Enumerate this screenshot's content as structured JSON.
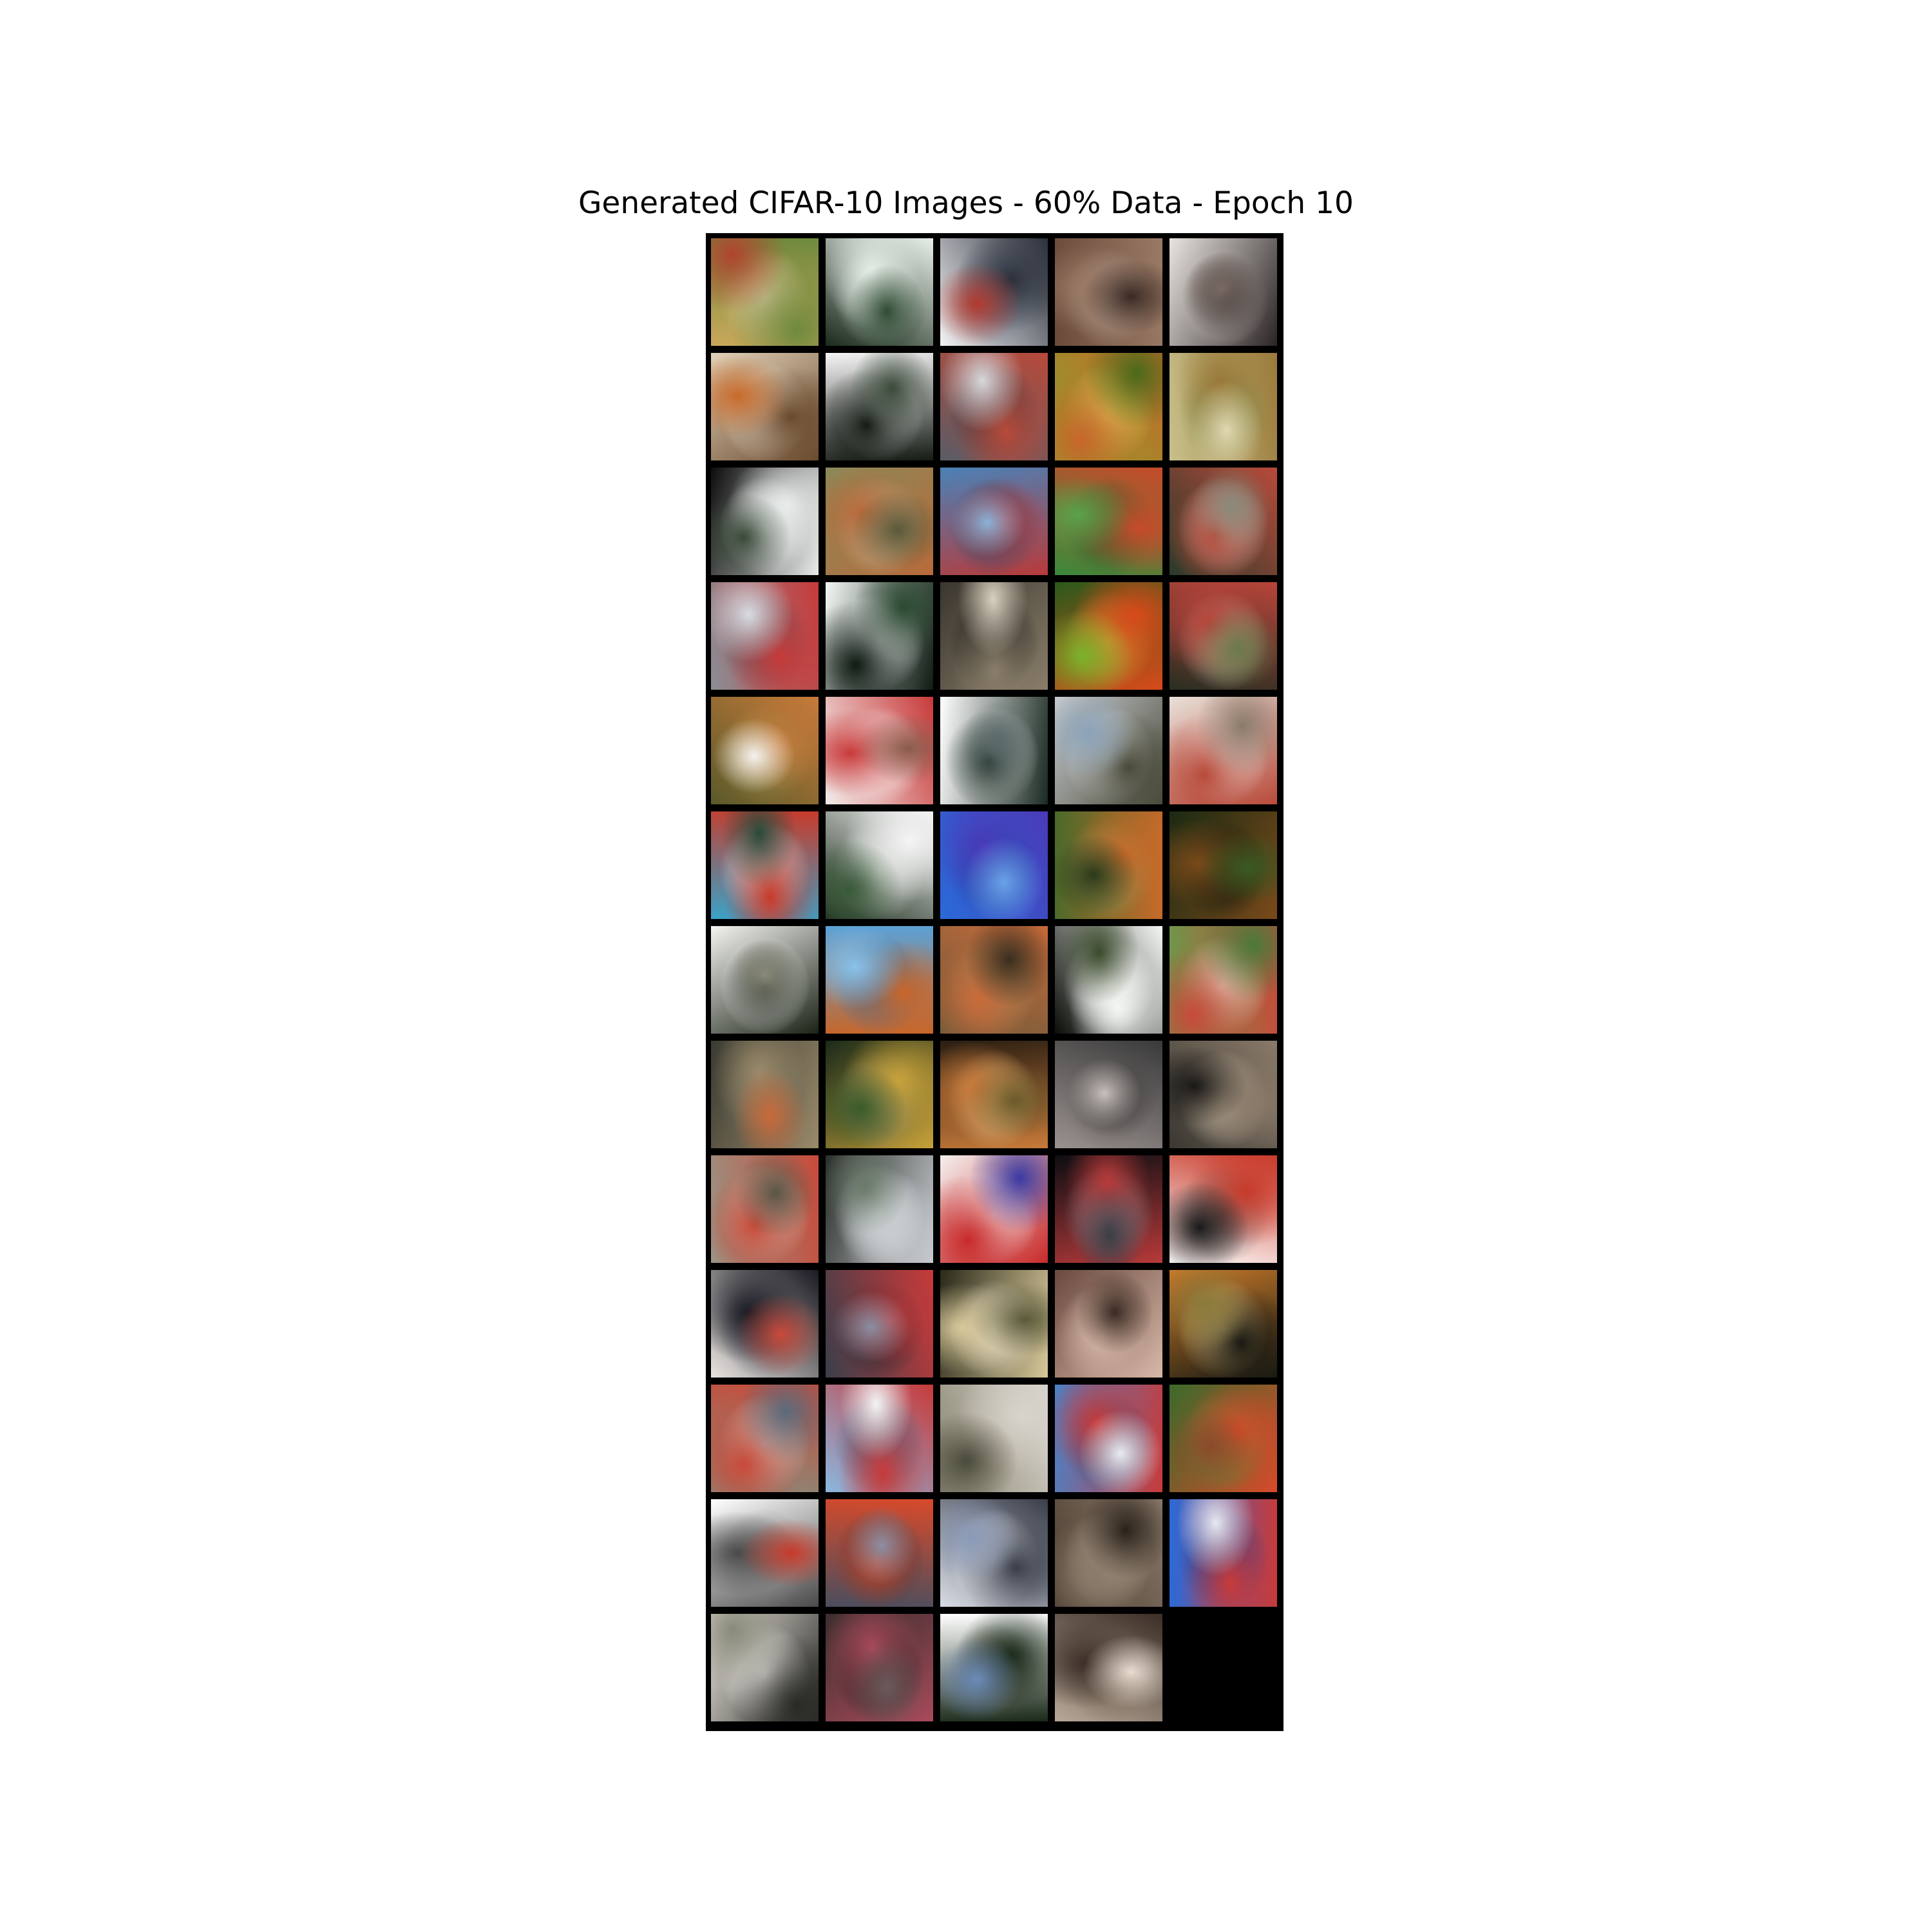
{
  "title": "Generated CIFAR-10 Images - 60% Data - Epoch 10",
  "grid": {
    "columns": 5,
    "rows": 13,
    "filled_tiles": 64,
    "tiles": [
      {
        "colors": [
          "#c9a85a",
          "#6f8a3e",
          "#b0452e",
          "#d8c9a0"
        ]
      },
      {
        "colors": [
          "#1a2a1c",
          "#e8efe9",
          "#2f4a33",
          "#b9c9bd"
        ]
      },
      {
        "colors": [
          "#f2f2f4",
          "#2a2f3a",
          "#b23a2e",
          "#6c7a92"
        ]
      },
      {
        "colors": [
          "#6b4a3a",
          "#9a7a66",
          "#3a2a24",
          "#b8a294"
        ]
      },
      {
        "colors": [
          "#e9e4e0",
          "#2a2424",
          "#7a6a64",
          "#c8bcb6"
        ]
      },
      {
        "colors": [
          "#e2d2b8",
          "#6a4a2e",
          "#c86a2a",
          "#f0e6d6"
        ]
      },
      {
        "colors": [
          "#f6f6f6",
          "#141a14",
          "#3a4a3a",
          "#dcdcdc"
        ]
      },
      {
        "colors": [
          "#5a5c66",
          "#b84a3a",
          "#d8d8dc",
          "#2e3038"
        ]
      },
      {
        "colors": [
          "#8aa02a",
          "#c8662a",
          "#4a6a1a",
          "#e0c85a"
        ]
      },
      {
        "colors": [
          "#c8c08a",
          "#9a7a3a",
          "#e0d8b0",
          "#7a8a4a"
        ]
      },
      {
        "colors": [
          "#0c0c0c",
          "#e8ecea",
          "#3a4a3a",
          "#ffffff"
        ]
      },
      {
        "colors": [
          "#8a8a5a",
          "#b86a3a",
          "#5a5a3a",
          "#c8b89a"
        ]
      },
      {
        "colors": [
          "#4a82b8",
          "#b83a3a",
          "#8ab2d8",
          "#2a4a6a"
        ]
      },
      {
        "colors": [
          "#3a8a3a",
          "#c84a2a",
          "#5aa24a",
          "#2a5a2a"
        ]
      },
      {
        "colors": [
          "#2a3a2a",
          "#b84a3a",
          "#8a8a7a",
          "#d8d0c8"
        ]
      },
      {
        "colors": [
          "#8a8e96",
          "#c83a3a",
          "#d8dce2",
          "#4a4e56"
        ]
      },
      {
        "colors": [
          "#f4f8f4",
          "#0e1a12",
          "#2a4a32",
          "#ffffff"
        ]
      },
      {
        "colors": [
          "#3a362e",
          "#8a7e6a",
          "#d8d0c0",
          "#1e1c18"
        ]
      },
      {
        "colors": [
          "#2a5a1a",
          "#d84a1a",
          "#7ab22a",
          "#e8a23a"
        ]
      },
      {
        "colors": [
          "#2a2e22",
          "#b8443a",
          "#6a7a4a",
          "#c8bca8"
        ]
      },
      {
        "colors": [
          "#5a5a2a",
          "#c87a3a",
          "#f4f2ee",
          "#8a8a4a"
        ]
      },
      {
        "colors": [
          "#f2ecea",
          "#c83a3a",
          "#8a5a4a",
          "#ffffff"
        ]
      },
      {
        "colors": [
          "#ffffff",
          "#1a2a22",
          "#5a6a6a",
          "#e8ecec"
        ]
      },
      {
        "colors": [
          "#c8ccd0",
          "#4a4a3a",
          "#8aa2b8",
          "#eaeaea"
        ]
      },
      {
        "colors": [
          "#e8e0d8",
          "#b84a3a",
          "#8a7a6a",
          "#f4f0ec"
        ]
      },
      {
        "colors": [
          "#3aa2c8",
          "#c83a2a",
          "#2a4a3a",
          "#e8e8e8"
        ]
      },
      {
        "colors": [
          "#1a2a1a",
          "#f4f4f4",
          "#3a5a3a",
          "#d8dcd8"
        ]
      },
      {
        "colors": [
          "#2a6ad8",
          "#4a3ab8",
          "#6aa2e8",
          "#1a4aa2"
        ]
      },
      {
        "colors": [
          "#4a6a2a",
          "#c86a2a",
          "#2a3a1a",
          "#8a9a5a"
        ]
      },
      {
        "colors": [
          "#1a2a12",
          "#7a4a1a",
          "#3a5a22",
          "#0e140a"
        ]
      },
      {
        "colors": [
          "#f4f4f0",
          "#1a2216",
          "#8a8a7a",
          "#ffffff"
        ]
      },
      {
        "colors": [
          "#5aa2d8",
          "#c8662a",
          "#8ac2e8",
          "#2a6aa2"
        ]
      },
      {
        "colors": [
          "#6a5a3a",
          "#c86a3a",
          "#3a2e1e",
          "#a88a5a"
        ]
      },
      {
        "colors": [
          "#0a0e08",
          "#f4f6f4",
          "#3a4a2a",
          "#ffffff"
        ]
      },
      {
        "colors": [
          "#6a9a4a",
          "#c84a3a",
          "#4a7a3a",
          "#e8d8c8"
        ]
      },
      {
        "colors": [
          "#3a3a32",
          "#9a8a6a",
          "#c86a3a",
          "#6a6a5a"
        ]
      },
      {
        "colors": [
          "#1a2a1a",
          "#c8a23a",
          "#3a5a2a",
          "#8a8a6a"
        ]
      },
      {
        "colors": [
          "#2a1e12",
          "#c87a3a",
          "#6a5a2a",
          "#e8c88a"
        ]
      },
      {
        "colors": [
          "#9a9290",
          "#3a3a3a",
          "#c8c0bc",
          "#6a625e"
        ]
      },
      {
        "colors": [
          "#3a3832",
          "#8a7a6a",
          "#1a1816",
          "#c8b8a2"
        ]
      },
      {
        "colors": [
          "#9a9484",
          "#c84a3a",
          "#5a5646",
          "#d8d0c0"
        ]
      },
      {
        "colors": [
          "#2a2e2a",
          "#c8ccd0",
          "#6a7a6a",
          "#e8ecee"
        ]
      },
      {
        "colors": [
          "#f4f0ee",
          "#c82a2a",
          "#3a3aa2",
          "#ffffff"
        ]
      },
      {
        "colors": [
          "#0c0e12",
          "#b83a3a",
          "#3a3e46",
          "#8a8e98"
        ]
      },
      {
        "colors": [
          "#ffffff",
          "#c83a2a",
          "#1a1a1a",
          "#6a6a6a"
        ]
      },
      {
        "colors": [
          "#e8e4e0",
          "#1a1a22",
          "#c84a3a",
          "#4a4a5a"
        ]
      },
      {
        "colors": [
          "#3a3e4a",
          "#c83a3a",
          "#8a8ea2",
          "#1e222a"
        ]
      },
      {
        "colors": [
          "#2a2a1a",
          "#d8c89a",
          "#5a5a3a",
          "#f4ecd8"
        ]
      },
      {
        "colors": [
          "#6a4a3e",
          "#d8b8a8",
          "#3a2a22",
          "#a8887a"
        ]
      },
      {
        "colors": [
          "#c87a2a",
          "#1a1a12",
          "#8a7a3a",
          "#f4d89a"
        ]
      },
      {
        "colors": [
          "#8a8a7a",
          "#c84a3a",
          "#5a6a7a",
          "#d8d4cc"
        ]
      },
      {
        "colors": [
          "#8ab8e0",
          "#c83a3a",
          "#f4f4f4",
          "#3a5a7a"
        ]
      },
      {
        "colors": [
          "#8a8672",
          "#d8d4cc",
          "#4a4a3a",
          "#b8b0a0"
        ]
      },
      {
        "colors": [
          "#4a82c8",
          "#c83a3a",
          "#e8ecf0",
          "#2a4a7a"
        ]
      },
      {
        "colors": [
          "#3a6a2a",
          "#d84a2a",
          "#8a4a2a",
          "#5a8a3a"
        ]
      },
      {
        "colors": [
          "#ffffff",
          "#4a4a4a",
          "#c83a2a",
          "#8a8a8a"
        ]
      },
      {
        "colors": [
          "#4a4e5e",
          "#d84a2a",
          "#8a8ea2",
          "#2a2e3a"
        ]
      },
      {
        "colors": [
          "#d8dce4",
          "#3a3e4a",
          "#8a9ab8",
          "#f4f4f8"
        ]
      },
      {
        "colors": [
          "#4a3a2e",
          "#8a7a6a",
          "#2a221a",
          "#b8a894"
        ]
      },
      {
        "colors": [
          "#2a6ad8",
          "#c83a3a",
          "#e8e8f0",
          "#1a3a8a"
        ]
      },
      {
        "colors": [
          "#e8e4dc",
          "#2a2a26",
          "#8a8a7a",
          "#f8f6f2"
        ]
      },
      {
        "colors": [
          "#3a2e2e",
          "#a84a5a",
          "#6a5a5a",
          "#1a1616"
        ]
      },
      {
        "colors": [
          "#ffffff",
          "#1a2a1a",
          "#6a8ab8",
          "#4a4a3a"
        ]
      },
      {
        "colors": [
          "#b8a898",
          "#3a2e26",
          "#e8dcd0",
          "#7a6a5a"
        ]
      }
    ]
  }
}
